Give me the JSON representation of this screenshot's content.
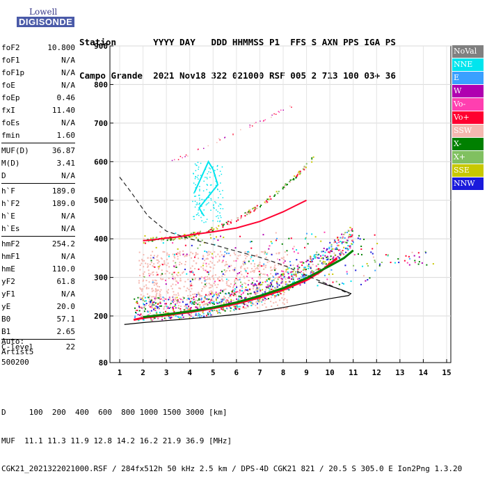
{
  "logo": {
    "line1": "Lowell",
    "line2": "DIGISONDE"
  },
  "header": {
    "line1": "Station       YYYY DAY   DDD HHMMSS P1  FFS S AXN PPS IGA PS",
    "line2": "Campo Grande  2021 Nov18 322 021000 RSF 005 2 713 100 03+ 36"
  },
  "params_group1": [
    {
      "label": "foF2",
      "value": "10.800"
    },
    {
      "label": "foF1",
      "value": "N/A"
    },
    {
      "label": "foF1p",
      "value": "N/A"
    },
    {
      "label": "foE",
      "value": "N/A"
    },
    {
      "label": "foEp",
      "value": "0.46"
    },
    {
      "label": "fxI",
      "value": "11.40"
    },
    {
      "label": "foEs",
      "value": "N/A"
    },
    {
      "label": "fmin",
      "value": "1.60"
    }
  ],
  "params_group2": [
    {
      "label": "MUF(D)",
      "value": "36.87"
    },
    {
      "label": "M(D)",
      "value": "3.41"
    },
    {
      "label": "D",
      "value": "N/A"
    }
  ],
  "params_group3": [
    {
      "label": "h`F",
      "value": "189.0"
    },
    {
      "label": "h`F2",
      "value": "189.0"
    },
    {
      "label": "h`E",
      "value": "N/A"
    },
    {
      "label": "h`Es",
      "value": "N/A"
    }
  ],
  "params_group4": [
    {
      "label": "hmF2",
      "value": "254.2"
    },
    {
      "label": "hmF1",
      "value": "N/A"
    },
    {
      "label": "hmE",
      "value": "110.0"
    },
    {
      "label": "yF2",
      "value": "61.8"
    },
    {
      "label": "yF1",
      "value": "N/A"
    },
    {
      "label": "yE",
      "value": "20.0"
    },
    {
      "label": "B0",
      "value": "57.1"
    },
    {
      "label": "B1",
      "value": "2.65"
    }
  ],
  "params_group5": [
    {
      "label": "C-level",
      "value": "22"
    }
  ],
  "auto": {
    "line1": "Auto:",
    "line2": "Artist5",
    "line3": "500200"
  },
  "legend": [
    {
      "label": "NoVal",
      "color": "#808080"
    },
    {
      "label": "NNE",
      "color": "#00e5ee"
    },
    {
      "label": "E",
      "color": "#3aa0ff"
    },
    {
      "label": "W",
      "color": "#b000b0"
    },
    {
      "label": "Vo-",
      "color": "#ff3fb0"
    },
    {
      "label": "Vo+",
      "color": "#ff0030"
    },
    {
      "label": "SSW",
      "color": "#f5b8b0"
    },
    {
      "label": "X-",
      "color": "#008000"
    },
    {
      "label": "X+",
      "color": "#80c060"
    },
    {
      "label": "SSE",
      "color": "#c8c800"
    },
    {
      "label": "NNW",
      "color": "#1a1adc"
    }
  ],
  "footer": {
    "line1": "D     100  200  400  600  800 1000 1500 3000 [km]",
    "line2": "MUF  11.1 11.3 11.9 12.8 14.2 16.2 21.9 36.9 [MHz]",
    "line3": "CGK21_2021322021000.RSF / 284fx512h 50 kHz 2.5 km / DPS-4D CGK21 821 / 20.5 S 305.0 E Ion2Png 1.3.20"
  },
  "chart_data": {
    "type": "scatter",
    "xlim": [
      1,
      15
    ],
    "ylim": [
      80,
      900
    ],
    "x_ticks": [
      1,
      2,
      3,
      4,
      5,
      6,
      7,
      8,
      9,
      10,
      11,
      12,
      13,
      14,
      15
    ],
    "y_ticks": [
      80,
      200,
      300,
      400,
      500,
      600,
      700,
      800,
      900
    ],
    "grid": true,
    "series": [
      {
        "name": "Vo+",
        "color": "#ff0030",
        "x": [
          1.6,
          2.0,
          3.0,
          4.0,
          5.0,
          6.0,
          7.0,
          8.0,
          9.0,
          9.6,
          10.0,
          10.3
        ],
        "y": [
          190,
          195,
          202,
          210,
          220,
          232,
          248,
          268,
          293,
          315,
          335,
          350
        ]
      },
      {
        "name": "X-",
        "color": "#008000",
        "x": [
          2.0,
          3.0,
          4.0,
          5.0,
          6.0,
          7.0,
          8.0,
          9.0,
          10.0,
          10.6,
          11.0
        ],
        "y": [
          197,
          204,
          212,
          222,
          235,
          252,
          272,
          298,
          330,
          350,
          370
        ]
      },
      {
        "name": "Vo+",
        "color": "#ff0030",
        "x": [
          2.0,
          2.5,
          3.0,
          3.5,
          4.0,
          4.5,
          5.0,
          6.0,
          7.0,
          8.0,
          8.5,
          9.0
        ],
        "y": [
          395,
          398,
          402,
          405,
          410,
          414,
          418,
          428,
          445,
          470,
          485,
          500
        ]
      },
      {
        "name": "NNE",
        "color": "#00e5ee",
        "x": [
          4.2,
          4.5,
          4.8,
          5.0,
          5.2,
          4.4,
          4.6
        ],
        "y": [
          520,
          560,
          600,
          580,
          540,
          480,
          460
        ]
      }
    ]
  }
}
